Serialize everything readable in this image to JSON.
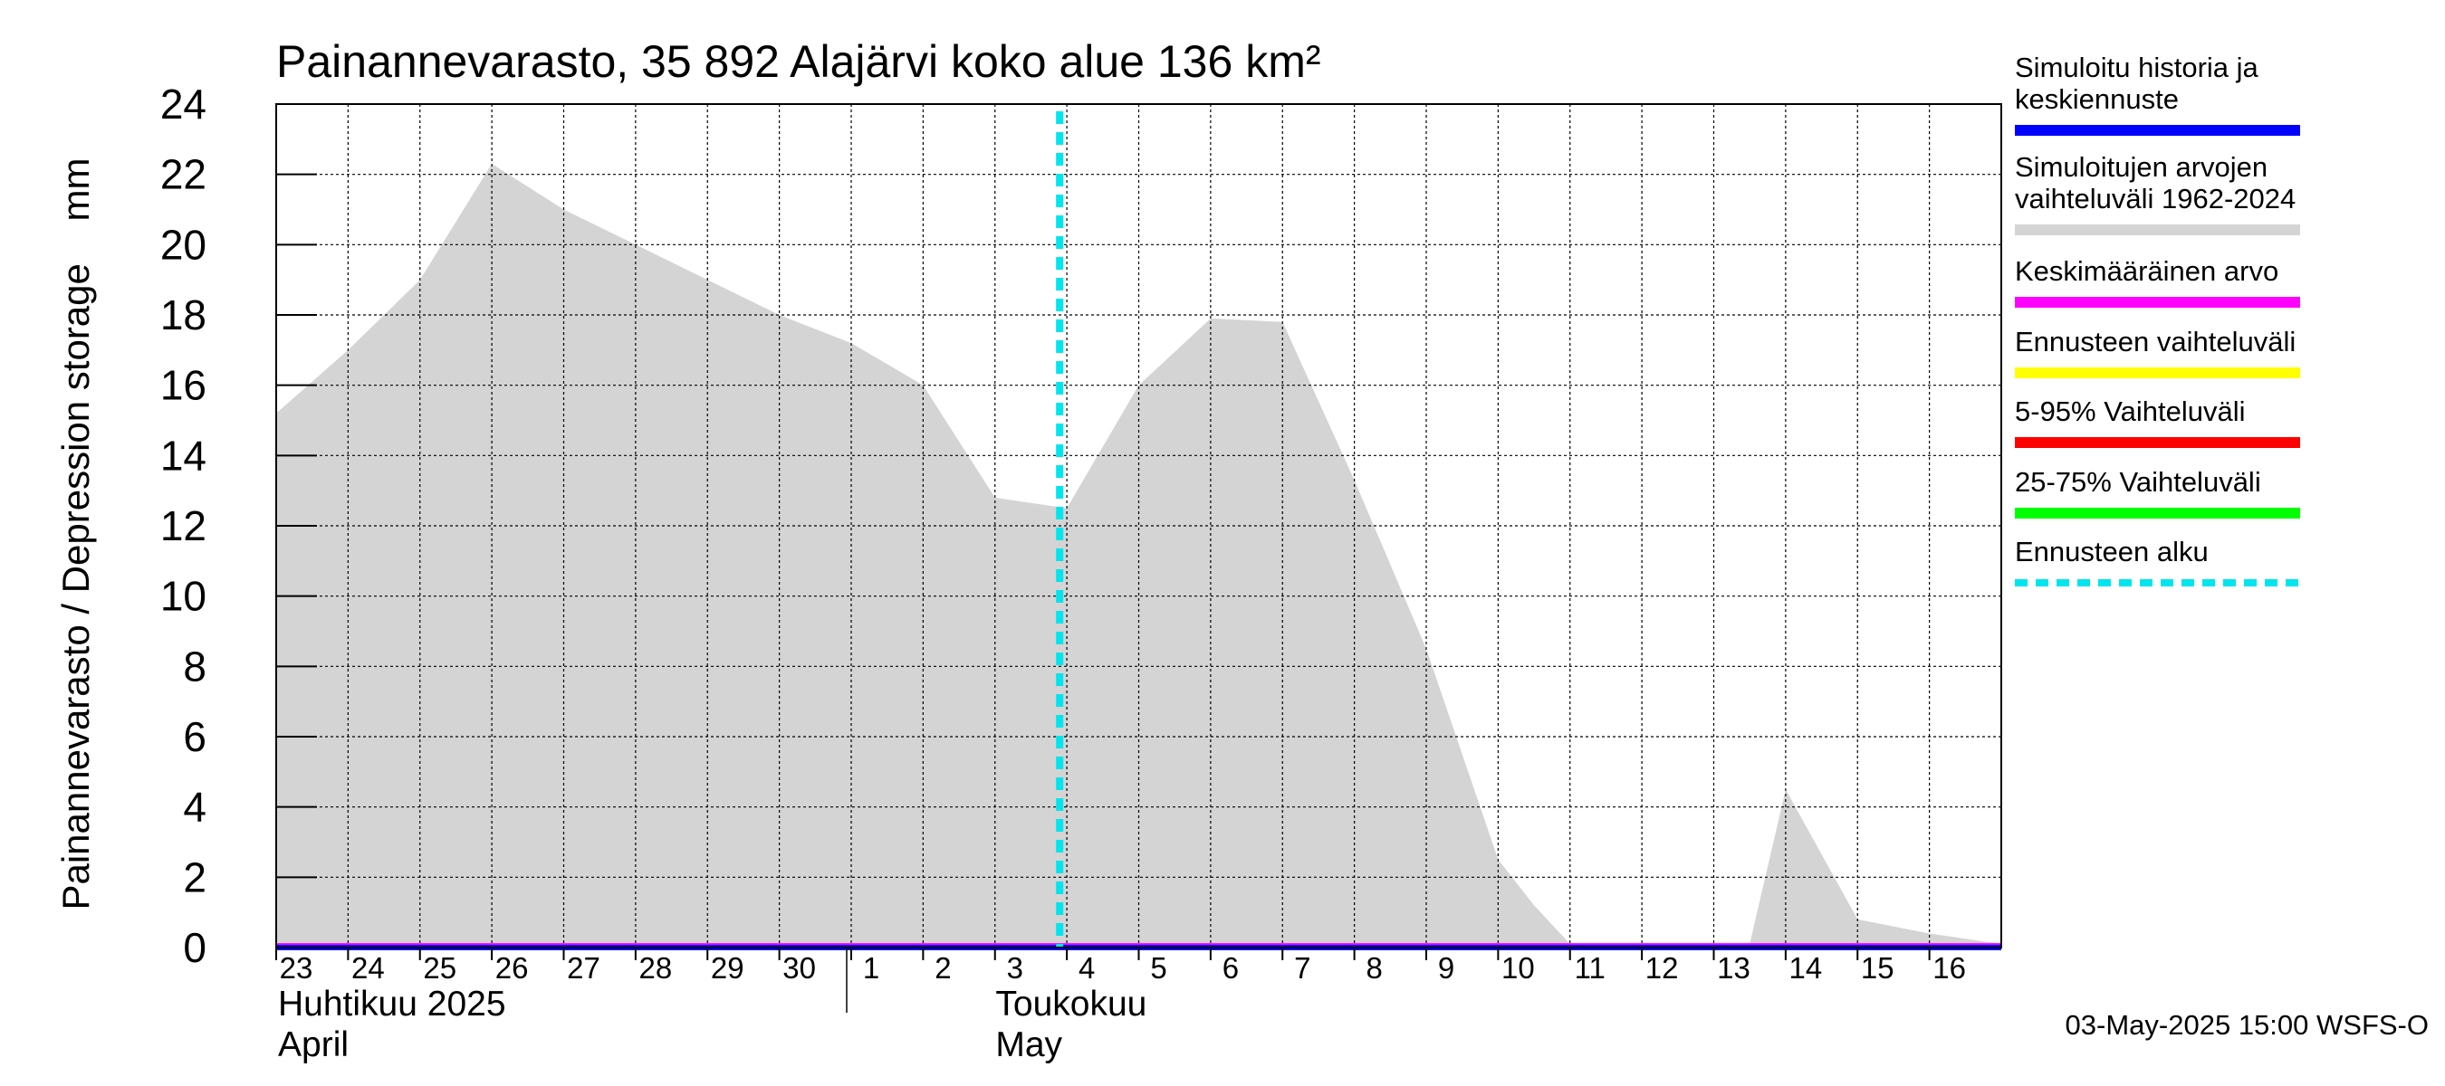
{
  "chart_data": {
    "type": "area",
    "title": "Painannevarasto, 35 892 Alajärvi koko alue 136 km²",
    "ylabel": "Painannevarasto / Depression storage    mm",
    "ylim": [
      0,
      24
    ],
    "yticks": [
      0,
      2,
      4,
      6,
      8,
      10,
      12,
      14,
      16,
      18,
      20,
      22,
      24
    ],
    "x_start": "2025-04-22",
    "xlim_days": [
      0,
      24.0
    ],
    "xtick_labels": [
      "23",
      "24",
      "25",
      "26",
      "27",
      "28",
      "29",
      "30",
      "1",
      "2",
      "3",
      "4",
      "5",
      "6",
      "7",
      "8",
      "9",
      "10",
      "11",
      "12",
      "13",
      "14",
      "15",
      "16"
    ],
    "month_labels": [
      {
        "fi": "Huhtikuu  2025",
        "en": "April",
        "day_index": 0
      },
      {
        "fi": "Toukokuu",
        "en": "May",
        "day_index": 9
      }
    ],
    "grid": true,
    "series": [
      {
        "name": "Simuloitujen arvojen vaihteluväli 1962-2024",
        "kind": "band",
        "color": "#d4d4d4",
        "x_days": [
          0,
          1,
          2,
          3,
          4,
          5,
          6,
          7,
          8,
          9,
          10,
          11,
          12,
          13,
          14,
          15,
          16,
          17,
          17.5,
          18,
          19,
          20,
          20.5,
          21,
          22,
          23,
          24
        ],
        "upper": [
          15.2,
          17.0,
          19.0,
          22.3,
          21.0,
          20.0,
          19.0,
          18.0,
          17.2,
          16.0,
          12.8,
          12.5,
          16.0,
          17.9,
          17.8,
          13.3,
          8.5,
          2.5,
          1.2,
          0.1,
          0.1,
          0.1,
          0.1,
          4.5,
          0.8,
          0.4,
          0.1
        ],
        "lower": [
          0.1,
          0.1,
          0.1,
          0.1,
          0.1,
          0.1,
          0.1,
          0.1,
          0.1,
          0.1,
          0.1,
          0.1,
          0.1,
          0.1,
          0.1,
          0.1,
          0.1,
          0.1,
          0.1,
          0.1,
          0.1,
          0.1,
          0.1,
          0.1,
          0.1,
          0.1,
          0.1
        ]
      },
      {
        "name": "Keskimääräinen arvo",
        "kind": "line",
        "color": "#ff00ff",
        "x_days": [
          0,
          24
        ],
        "values": [
          0.05,
          0.05
        ]
      },
      {
        "name": "Simuloitu historia ja keskiennuste",
        "kind": "line",
        "color": "#0000ff",
        "x_days": [
          0,
          24
        ],
        "values": [
          0.0,
          0.0
        ]
      }
    ],
    "forecast_start_day": 10.9,
    "legend": [
      {
        "lines": [
          "Simuloitu historia ja",
          "keskiennuste"
        ],
        "color": "#0000ff",
        "style": "solid"
      },
      {
        "lines": [
          "Simuloitujen arvojen",
          "vaihteluväli 1962-2024"
        ],
        "color": "#d4d4d4",
        "style": "solid"
      },
      {
        "lines": [
          "Keskimääräinen arvo"
        ],
        "color": "#ff00ff",
        "style": "solid"
      },
      {
        "lines": [
          "Ennusteen vaihteluväli"
        ],
        "color": "#ffff00",
        "style": "solid"
      },
      {
        "lines": [
          "5-95% Vaihteluväli"
        ],
        "color": "#ff0000",
        "style": "solid"
      },
      {
        "lines": [
          "25-75% Vaihteluväli"
        ],
        "color": "#00ff00",
        "style": "solid"
      },
      {
        "lines": [
          "Ennusteen alku"
        ],
        "color": "#00e5ee",
        "style": "dashed"
      }
    ],
    "legend_position": "right",
    "footer": "03-May-2025 15:00 WSFS-O"
  }
}
